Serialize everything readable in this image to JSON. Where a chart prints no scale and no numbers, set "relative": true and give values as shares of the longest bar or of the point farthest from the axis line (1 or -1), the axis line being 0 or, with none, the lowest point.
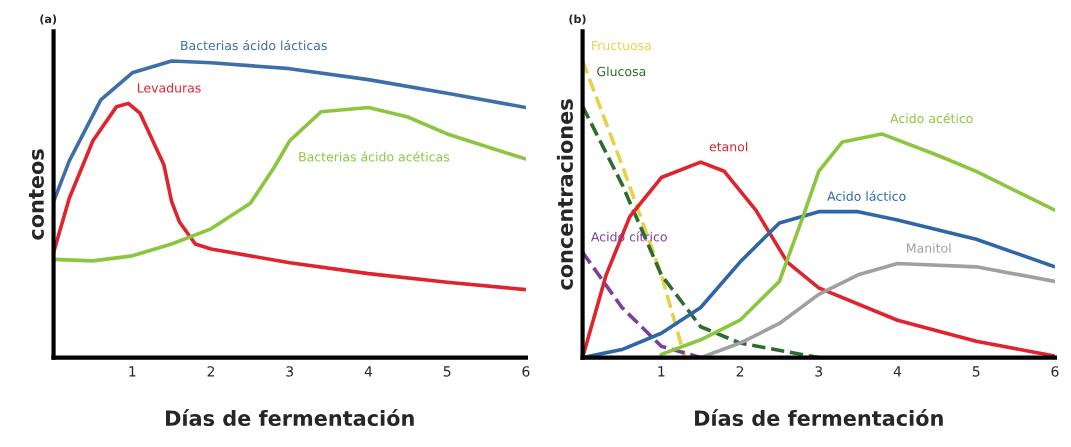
{
  "chart_data": [
    {
      "type": "line",
      "title": "(a)",
      "xlabel": "Días de fermentación",
      "ylabel": "conteos",
      "relative": true,
      "xlim": [
        0,
        6
      ],
      "xticks": [
        1,
        2,
        3,
        4,
        5,
        6
      ],
      "grid": false,
      "series": [
        {
          "name": "Bacterias ácido lácticas",
          "color": "#3f6fa8",
          "x": [
            0,
            0.2,
            0.6,
            1,
            1.5,
            2,
            3,
            4,
            5,
            6
          ],
          "values": [
            0.526,
            0.663,
            0.869,
            0.96,
            1,
            0.994,
            0.974,
            0.937,
            0.891,
            0.843
          ]
        },
        {
          "name": "Levaduras",
          "color": "#e0242e",
          "x": [
            0,
            0.2,
            0.5,
            0.8,
            0.95,
            1.1,
            1.4,
            1.5,
            1.6,
            1.8,
            2,
            3,
            4,
            5,
            6
          ],
          "values": [
            0.354,
            0.537,
            0.731,
            0.846,
            0.857,
            0.823,
            0.651,
            0.526,
            0.457,
            0.383,
            0.366,
            0.32,
            0.283,
            0.254,
            0.229
          ]
        },
        {
          "name": "Bacterias ácido acéticas",
          "color": "#8cc63f",
          "x": [
            0,
            0.5,
            1,
            1.5,
            2,
            2.5,
            2.8,
            3,
            3.4,
            4,
            4.5,
            5,
            6
          ],
          "values": [
            0.331,
            0.326,
            0.343,
            0.383,
            0.434,
            0.52,
            0.64,
            0.731,
            0.829,
            0.843,
            0.811,
            0.754,
            0.669
          ]
        }
      ]
    },
    {
      "type": "line",
      "title": "(b)",
      "xlabel": "Días de fermentación",
      "ylabel": "concentraciones",
      "relative": true,
      "xlim": [
        0,
        6
      ],
      "xticks": [
        1,
        2,
        3,
        4,
        5,
        6
      ],
      "grid": false,
      "series": [
        {
          "name": "Fructuosa",
          "color": "#e6d24a",
          "line_style": "dashed",
          "x": [
            0,
            0.5,
            1,
            1.3
          ],
          "values": [
            1,
            0.65,
            0.279,
            0
          ]
        },
        {
          "name": "Glucosa",
          "color": "#2e6b2e",
          "line_style": "dashed",
          "x": [
            0,
            0.5,
            1,
            1.5,
            2,
            3
          ],
          "values": [
            0.847,
            0.585,
            0.279,
            0.104,
            0.049,
            0
          ]
        },
        {
          "name": "Acido cítrico",
          "color": "#7b3f9e",
          "line_style": "dashed",
          "x": [
            0,
            0.5,
            1,
            1.5
          ],
          "values": [
            0.355,
            0.169,
            0.038,
            0
          ]
        },
        {
          "name": "etanol",
          "color": "#e0242e",
          "x": [
            0,
            0.3,
            0.6,
            1,
            1.5,
            1.8,
            2.2,
            2.6,
            3,
            4,
            5,
            6
          ],
          "values": [
            0,
            0.279,
            0.475,
            0.607,
            0.659,
            0.628,
            0.497,
            0.322,
            0.235,
            0.126,
            0.055,
            0.005
          ]
        },
        {
          "name": "Acido láctico",
          "color": "#2f66a6",
          "x": [
            0,
            0.5,
            1,
            1.5,
            2,
            2.5,
            3,
            3.5,
            4,
            5,
            6
          ],
          "values": [
            0,
            0.027,
            0.082,
            0.169,
            0.322,
            0.454,
            0.492,
            0.492,
            0.464,
            0.399,
            0.306
          ]
        },
        {
          "name": "Acido acético",
          "color": "#8cc63f",
          "x": [
            1,
            1.5,
            2,
            2.5,
            2.8,
            3,
            3.3,
            3.8,
            4.5,
            5,
            6
          ],
          "values": [
            0.011,
            0.06,
            0.126,
            0.257,
            0.475,
            0.628,
            0.727,
            0.754,
            0.683,
            0.628,
            0.497
          ]
        },
        {
          "name": "Manitol",
          "color": "#a0a0a0",
          "x": [
            1.5,
            2,
            2.5,
            3,
            3.5,
            4,
            5,
            6
          ],
          "values": [
            0,
            0.049,
            0.115,
            0.213,
            0.279,
            0.317,
            0.306,
            0.257
          ]
        }
      ]
    }
  ]
}
